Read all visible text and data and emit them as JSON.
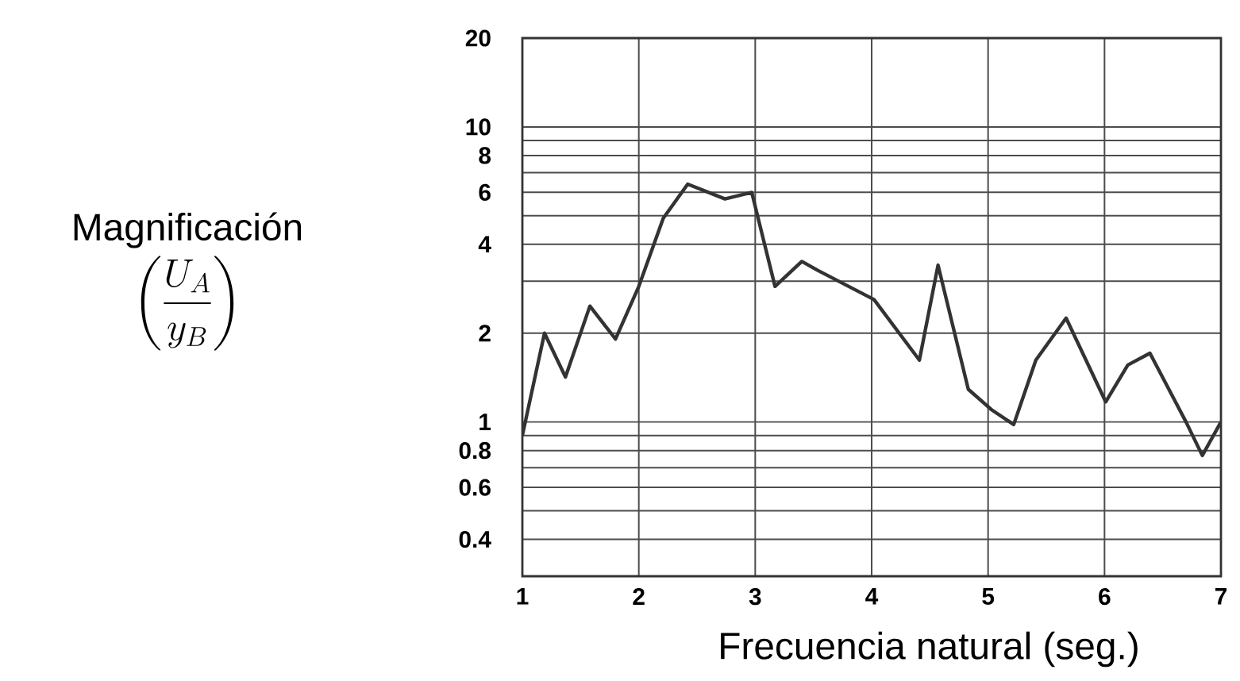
{
  "chart_data": {
    "type": "line",
    "xlabel": "Frecuencia natural (seg.)",
    "ylabel": "Magnificación",
    "annotations": [
      "\\left(\\frac{U_{A}}{y_{B}}\\right)"
    ],
    "x": [
      1.0,
      1.19,
      1.37,
      1.58,
      1.8,
      2.0,
      2.21,
      2.42,
      2.74,
      2.97,
      3.17,
      3.4,
      3.54,
      4.02,
      4.41,
      4.57,
      4.83,
      5.03,
      5.22,
      5.41,
      5.67,
      6.01,
      6.2,
      6.39,
      6.7,
      6.84,
      7.0
    ],
    "series": [
      {
        "color": "#333333",
        "values": [
          0.9,
          2.0,
          1.42,
          2.47,
          1.91,
          2.88,
          4.9,
          6.4,
          5.7,
          6.0,
          2.88,
          3.5,
          3.26,
          2.6,
          1.62,
          3.4,
          1.29,
          1.1,
          0.98,
          1.62,
          2.25,
          1.17,
          1.56,
          1.71,
          1.0,
          0.77,
          1.0
        ]
      }
    ],
    "log": "y",
    "grid": true,
    "xlim": [
      1,
      7
    ],
    "ylim": [
      0.3,
      20
    ],
    "xticks": [
      1,
      2,
      3,
      4,
      5,
      6,
      7
    ],
    "yticks": [
      0.4,
      {
        "value": 0.5,
        "label": null
      },
      0.6,
      {
        "value": 0.7,
        "label": null
      },
      0.8,
      {
        "value": 0.9,
        "label": null
      },
      1,
      2,
      {
        "value": 3,
        "label": null
      },
      4,
      {
        "value": 5,
        "label": null
      },
      6,
      {
        "value": 7,
        "label": null
      },
      8,
      {
        "value": 9,
        "label": null
      },
      10,
      20
    ]
  }
}
